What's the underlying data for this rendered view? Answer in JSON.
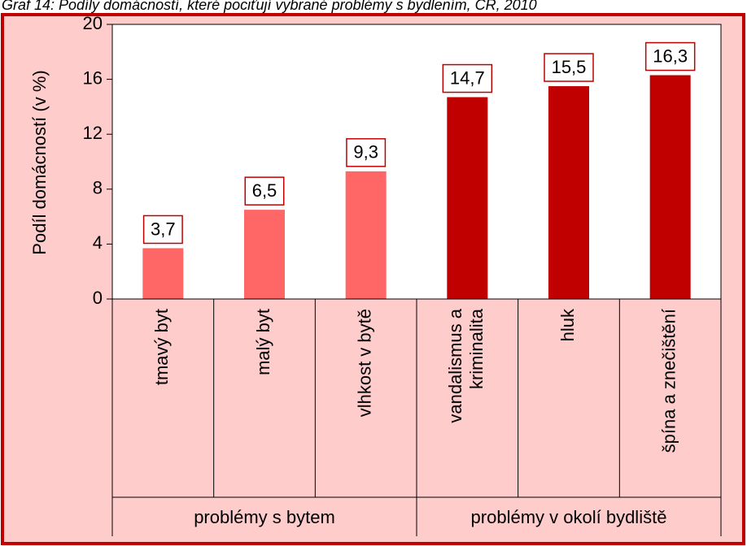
{
  "chart_data": {
    "type": "bar",
    "title": "Graf 14: Podíly domácností, které pociťují vybrané problémy s bydlením, ČR, 2010",
    "y_label": "Podíl domácností (v %)",
    "ylim": [
      0,
      20
    ],
    "yticks": [
      0,
      4,
      8,
      12,
      16,
      20
    ],
    "groups": [
      {
        "label": "problémy s bytem",
        "color": "#ff6666",
        "categories": [
          "tmavý byt",
          "malý byt",
          "vlhkost v bytě"
        ],
        "values": [
          3.7,
          6.5,
          9.3
        ],
        "value_labels": [
          "3,7",
          "6,5",
          "9,3"
        ]
      },
      {
        "label": "problémy v okolí bydliště",
        "color": "#c00000",
        "categories": [
          [
            "vandalismus a",
            "kriminalita"
          ],
          "hluk",
          "špína a znečištění"
        ],
        "values": [
          14.7,
          15.5,
          16.3
        ],
        "value_labels": [
          "14,7",
          "15,5",
          "16,3"
        ]
      }
    ]
  }
}
